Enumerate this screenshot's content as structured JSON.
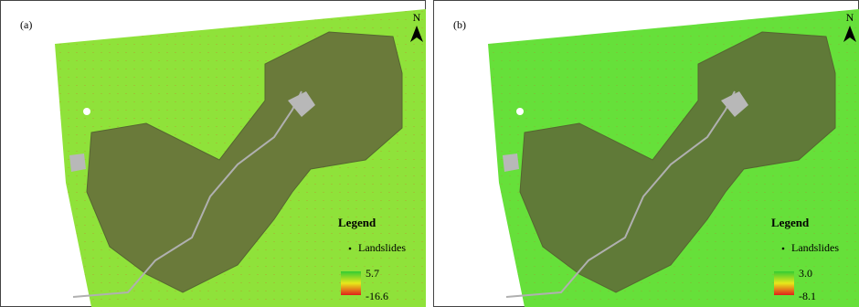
{
  "panels": [
    {
      "label": "(a)",
      "north": "N",
      "legend": {
        "title": "Legend",
        "item": "Landslides",
        "max": "5.7",
        "min": "-16.6"
      }
    },
    {
      "label": "(b)",
      "north": "N",
      "legend": {
        "title": "Legend",
        "item": "Landslides",
        "max": "3.0",
        "min": "-8.1"
      }
    }
  ]
}
